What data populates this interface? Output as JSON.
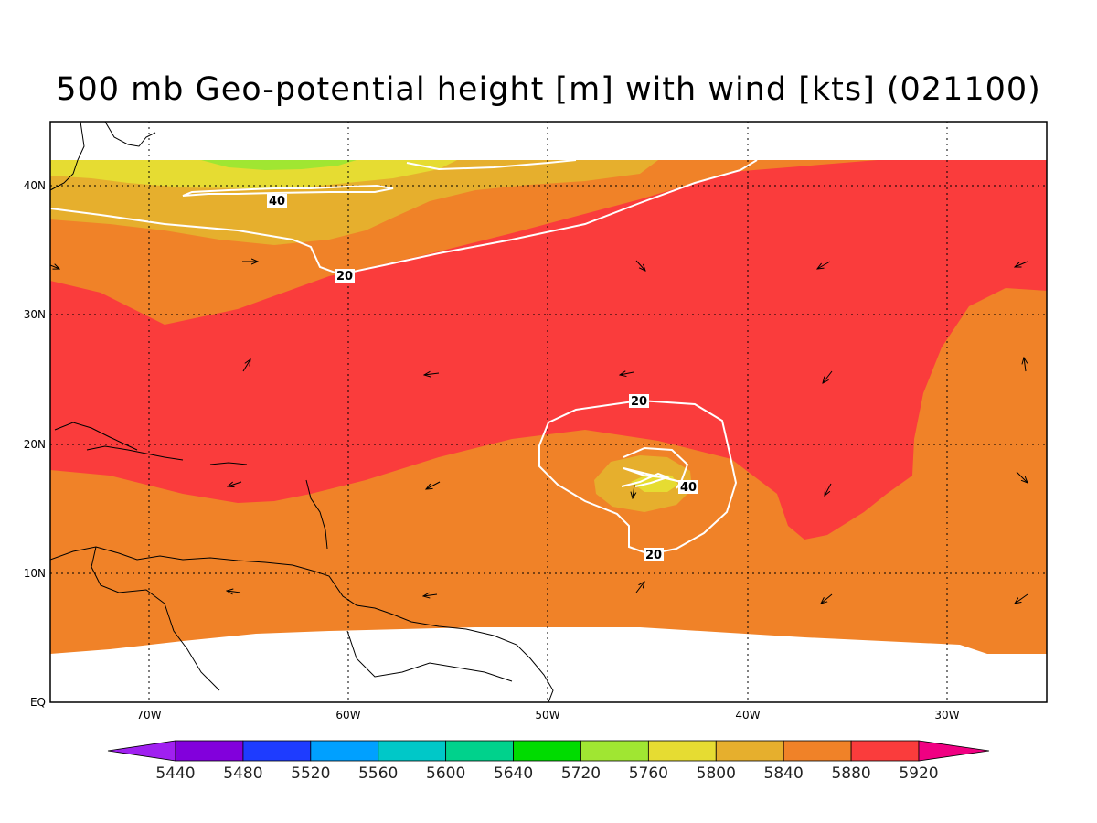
{
  "title": "500 mb Geo-potential height [m] with wind [kts] (021100)",
  "x_axis": {
    "ticks": [
      "70W",
      "60W",
      "50W",
      "40W",
      "30W"
    ]
  },
  "y_axis": {
    "ticks": [
      "EQ",
      "10N",
      "20N",
      "30N",
      "40N"
    ]
  },
  "wind_contour_labels": [
    {
      "text": "40"
    },
    {
      "text": "20"
    },
    {
      "text": "20"
    },
    {
      "text": "40"
    },
    {
      "text": "20"
    }
  ],
  "colorbar": {
    "labels": [
      "5440",
      "5480",
      "5520",
      "5560",
      "5600",
      "5640",
      "5720",
      "5760",
      "5800",
      "5840",
      "5880",
      "5920"
    ],
    "colors": [
      "#a020f0",
      "#8200dc",
      "#1e3cff",
      "#00a0ff",
      "#00c8c8",
      "#00d28c",
      "#00dc00",
      "#a0e632",
      "#e6dc32",
      "#e6af2d",
      "#f08228",
      "#fa3c3c",
      "#f00082"
    ]
  },
  "colors": {
    "c5720": "#a0e632",
    "c5760": "#e6dc32",
    "c5800": "#e6af2d",
    "c5840": "#f08228",
    "c5880": "#fa3c3c",
    "contour": "#ffffff",
    "coastline": "#000000"
  }
}
